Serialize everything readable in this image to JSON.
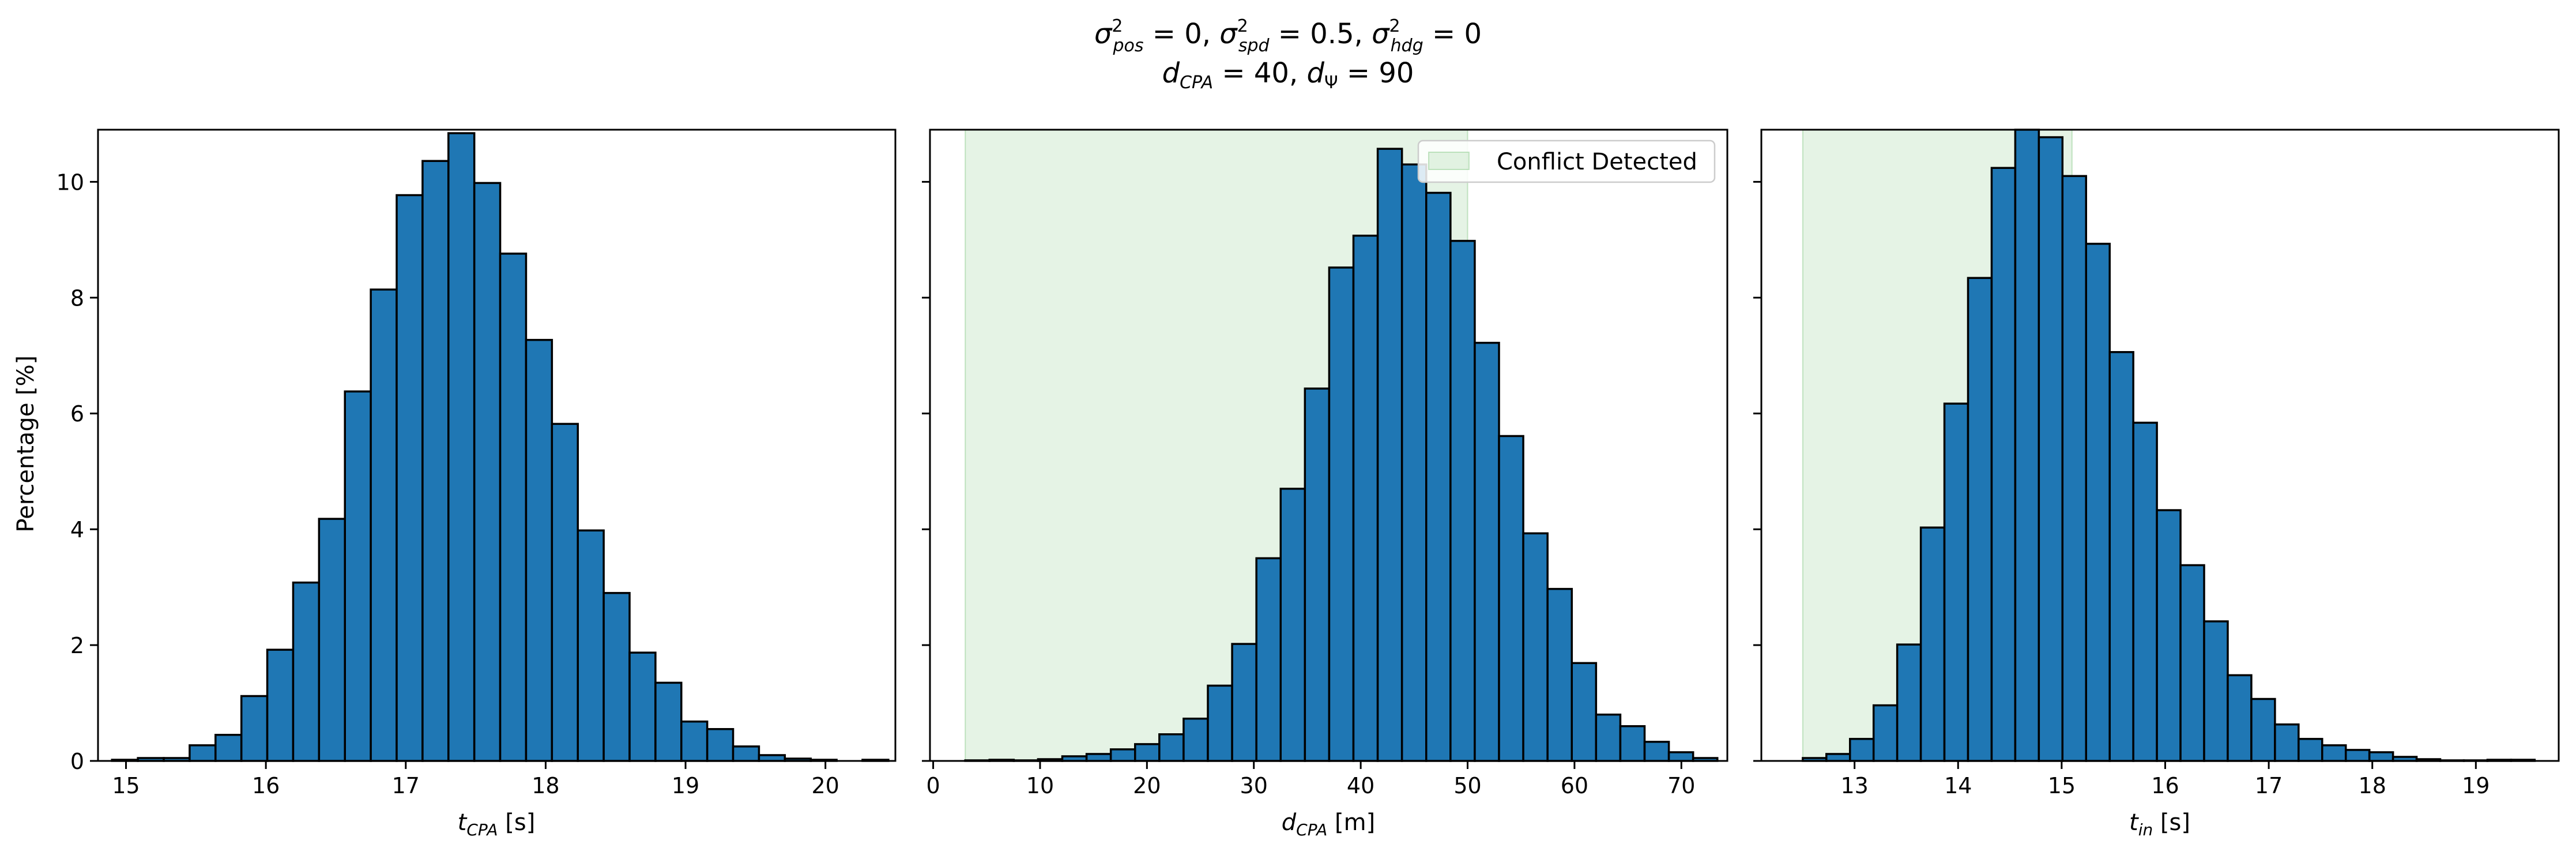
{
  "figure": {
    "title_line1": "σ²pos = 0, σ²spd = 0.5, σ²hdg = 0",
    "title_line2": "dCPA = 40, dΨ = 90"
  },
  "chart_data": [
    {
      "type": "bar",
      "xlabel": "tCPA [s]",
      "ylabel": "Percentage [%]",
      "xlim": [
        14.8,
        20.5
      ],
      "ylim": [
        0,
        10.9
      ],
      "xticks": [
        15,
        16,
        17,
        18,
        19,
        20
      ],
      "yticks": [
        0,
        2,
        4,
        6,
        8,
        10
      ],
      "bin_start": 14.9,
      "bin_width": 0.185,
      "values": [
        0.02,
        0.05,
        0.05,
        0.27,
        0.45,
        1.12,
        1.92,
        3.08,
        4.18,
        6.38,
        8.14,
        9.77,
        10.36,
        10.84,
        9.98,
        8.76,
        7.27,
        5.82,
        3.98,
        2.9,
        1.87,
        1.35,
        0.68,
        0.55,
        0.25,
        0.1,
        0.04,
        0.02,
        0.0,
        0.02
      ],
      "shaded_region": null,
      "legend": null
    },
    {
      "type": "bar",
      "xlabel": "dCPA [m]",
      "ylabel": "",
      "xlim": [
        -0.3,
        74.3
      ],
      "ylim": [
        0,
        10.9
      ],
      "xticks": [
        0,
        10,
        20,
        30,
        40,
        50,
        60,
        70
      ],
      "yticks": [
        0,
        2,
        4,
        6,
        8,
        10
      ],
      "bin_start": 3.0,
      "bin_width": 2.27,
      "values": [
        0.01,
        0.02,
        0.01,
        0.03,
        0.08,
        0.12,
        0.2,
        0.29,
        0.46,
        0.73,
        1.3,
        2.02,
        3.5,
        4.7,
        6.43,
        8.52,
        9.07,
        10.57,
        10.3,
        9.81,
        8.98,
        7.22,
        5.61,
        3.93,
        2.97,
        1.69,
        0.8,
        0.6,
        0.33,
        0.15,
        0.05
      ],
      "shaded_region": [
        3.0,
        50.0
      ],
      "legend": {
        "label": "Conflict Detected",
        "position": "upper right",
        "color": "#2ca02c"
      }
    },
    {
      "type": "bar",
      "xlabel": "tin [s]",
      "ylabel": "",
      "xlim": [
        12.1,
        19.8
      ],
      "ylim": [
        0,
        10.9
      ],
      "xticks": [
        13,
        14,
        15,
        16,
        17,
        18,
        19
      ],
      "yticks": [
        0,
        2,
        4,
        6,
        8,
        10
      ],
      "bin_start": 12.5,
      "bin_width": 0.228,
      "values": [
        0.05,
        0.12,
        0.38,
        0.96,
        2.01,
        4.03,
        6.17,
        8.34,
        10.24,
        10.92,
        10.77,
        10.1,
        8.93,
        7.06,
        5.84,
        4.33,
        3.38,
        2.41,
        1.48,
        1.07,
        0.63,
        0.38,
        0.27,
        0.19,
        0.15,
        0.07,
        0.03,
        0.01,
        0.01,
        0.02,
        0.02
      ],
      "shaded_region": [
        12.5,
        15.1
      ],
      "legend": null
    }
  ]
}
